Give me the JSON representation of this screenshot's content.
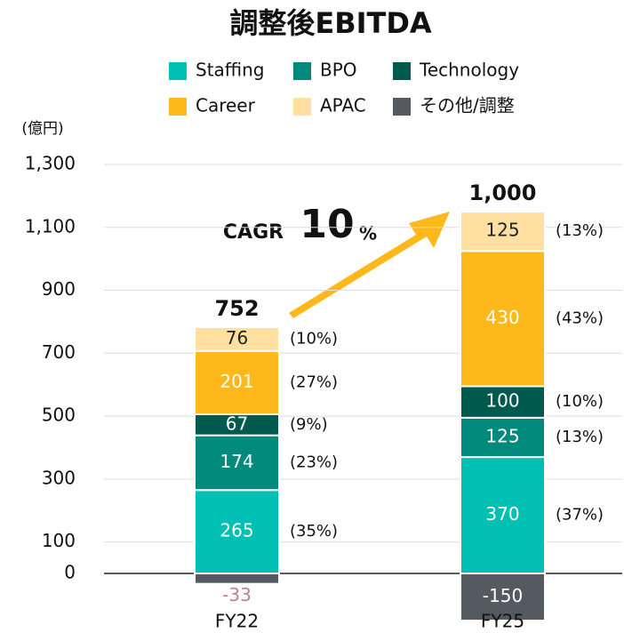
{
  "chart_data": {
    "type": "stacked_bar",
    "title": "調整後EBITDA",
    "unit_label": "(億円)",
    "categories": [
      "FY22",
      "FY25"
    ],
    "series": [
      {
        "name": "Staffing",
        "color": "#00bfb3",
        "values": [
          265,
          370
        ],
        "shares": [
          35,
          37
        ],
        "share_labels": [
          "(35%)",
          "(37%)"
        ]
      },
      {
        "name": "BPO",
        "color": "#008a7c",
        "values": [
          174,
          125
        ],
        "shares": [
          23,
          13
        ],
        "share_labels": [
          "(23%)",
          "(13%)"
        ]
      },
      {
        "name": "Technology",
        "color": "#005a4e",
        "values": [
          67,
          100
        ],
        "shares": [
          9,
          10
        ],
        "share_labels": [
          "(9%)",
          "(10%)"
        ]
      },
      {
        "name": "Career",
        "color": "#ffb81c",
        "values": [
          201,
          430
        ],
        "shares": [
          27,
          43
        ],
        "share_labels": [
          "(27%)",
          "(43%)"
        ]
      },
      {
        "name": "APAC",
        "color": "#ffe0a0",
        "values": [
          76,
          125
        ],
        "shares": [
          10,
          13
        ],
        "share_labels": [
          "(10%)",
          "(13%)"
        ]
      },
      {
        "name": "その他/調整",
        "color": "#555a60",
        "values": [
          -33,
          -150
        ]
      }
    ],
    "totals": [
      752,
      1000
    ],
    "total_labels": [
      "752",
      "1,000"
    ],
    "annotation": {
      "label": "CAGR",
      "value": 10,
      "unit": "%"
    },
    "ylim": [
      -150,
      1300
    ],
    "yticks": [
      0,
      100,
      300,
      500,
      700,
      900,
      {
        "value": 1100,
        "label": "1,100"
      },
      {
        "value": 1300,
        "label": "1,300"
      }
    ],
    "grid": true
  }
}
